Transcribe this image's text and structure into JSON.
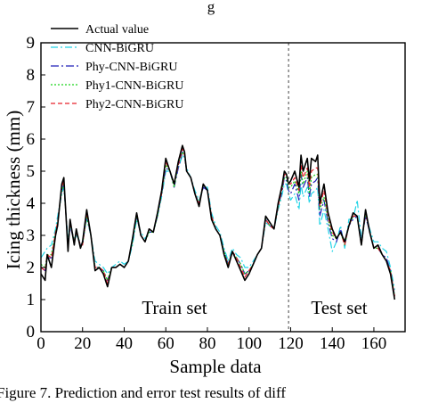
{
  "caption_top": "g",
  "caption_bottom": "Figure 7. Prediction and error test results of diff",
  "chart_data": {
    "type": "line",
    "xlabel": "Sample data",
    "ylabel": "Icing thickness (mm)",
    "xlim": [
      0,
      175
    ],
    "ylim": [
      0,
      9
    ],
    "xticks": [
      0,
      20,
      40,
      60,
      80,
      100,
      120,
      140,
      160
    ],
    "yticks": [
      0,
      1,
      2,
      3,
      4,
      5,
      6,
      7,
      8,
      9
    ],
    "split_x": 119,
    "annotations": [
      "Train set",
      "Test set"
    ],
    "legend_position": "top-left",
    "series": [
      {
        "name": "Actual value",
        "color": "#000000",
        "dash": "solid",
        "x": [
          0,
          2,
          3,
          5,
          7,
          8,
          10,
          11,
          13,
          14,
          16,
          17,
          19,
          20,
          22,
          24,
          26,
          28,
          30,
          32,
          34,
          36,
          38,
          40,
          42,
          44,
          46,
          48,
          50,
          52,
          54,
          56,
          58,
          60,
          62,
          64,
          66,
          68,
          69,
          70,
          72,
          74,
          76,
          78,
          80,
          82,
          84,
          86,
          88,
          90,
          92,
          94,
          96,
          98,
          100,
          102,
          104,
          106,
          108,
          110,
          112,
          114,
          116,
          117,
          118,
          119,
          120,
          122,
          124,
          125,
          126,
          128,
          129,
          130,
          132,
          133,
          134,
          136,
          138,
          140,
          142,
          144,
          146,
          148,
          150,
          152,
          154,
          156,
          158,
          160,
          162,
          164,
          166,
          168,
          170
        ],
        "y": [
          1.8,
          1.6,
          2.4,
          2.0,
          3.0,
          3.3,
          4.6,
          4.8,
          2.5,
          3.5,
          2.7,
          3.2,
          2.6,
          2.8,
          3.8,
          3.0,
          1.9,
          2.0,
          1.8,
          1.4,
          2.0,
          2.0,
          2.1,
          2.0,
          2.2,
          2.9,
          3.7,
          3.0,
          2.8,
          3.2,
          3.1,
          3.7,
          4.4,
          5.4,
          5.0,
          4.6,
          5.3,
          5.8,
          5.6,
          5.0,
          4.8,
          4.3,
          3.9,
          4.6,
          4.4,
          3.5,
          3.2,
          3.0,
          2.4,
          2.0,
          2.5,
          2.2,
          1.9,
          1.6,
          1.8,
          2.1,
          2.4,
          2.6,
          3.6,
          3.4,
          3.2,
          4.0,
          4.6,
          5.0,
          4.9,
          4.6,
          4.7,
          5.0,
          4.5,
          5.5,
          5.0,
          5.4,
          4.7,
          5.4,
          5.3,
          5.5,
          4.0,
          4.6,
          3.7,
          3.2,
          2.9,
          3.1,
          2.8,
          3.3,
          3.7,
          3.6,
          2.7,
          3.8,
          3.1,
          2.6,
          2.7,
          2.4,
          2.2,
          1.8,
          1.0
        ]
      },
      {
        "name": "CNN-BiGRU",
        "color": "#22d4e6",
        "dash": "8,3,2,3",
        "x": [
          0,
          2,
          3,
          5,
          7,
          8,
          10,
          11,
          13,
          14,
          16,
          17,
          19,
          20,
          22,
          24,
          26,
          28,
          30,
          32,
          34,
          36,
          38,
          40,
          42,
          44,
          46,
          48,
          50,
          52,
          54,
          56,
          58,
          60,
          62,
          64,
          66,
          68,
          69,
          70,
          72,
          74,
          76,
          78,
          80,
          82,
          84,
          86,
          88,
          90,
          92,
          94,
          96,
          98,
          100,
          102,
          104,
          106,
          108,
          110,
          112,
          114,
          116,
          117,
          118,
          119,
          120,
          122,
          124,
          125,
          126,
          128,
          129,
          130,
          132,
          133,
          134,
          136,
          138,
          140,
          142,
          144,
          146,
          148,
          150,
          152,
          154,
          156,
          158,
          160,
          162,
          164,
          166,
          168,
          170
        ],
        "y": [
          2.3,
          2.5,
          2.6,
          2.7,
          3.2,
          3.6,
          4.3,
          4.5,
          2.9,
          3.3,
          2.9,
          3.0,
          2.8,
          2.8,
          3.5,
          3.0,
          2.2,
          2.1,
          2.0,
          1.8,
          2.0,
          2.1,
          2.2,
          2.1,
          2.2,
          2.7,
          3.5,
          3.1,
          2.9,
          3.1,
          3.1,
          3.6,
          4.2,
          5.0,
          5.0,
          4.6,
          5.1,
          5.5,
          5.4,
          5.1,
          4.8,
          4.4,
          4.1,
          4.5,
          4.5,
          3.7,
          3.3,
          3.1,
          2.6,
          2.2,
          2.6,
          2.4,
          2.3,
          2.0,
          2.0,
          2.2,
          2.4,
          2.6,
          3.4,
          3.3,
          3.2,
          3.8,
          4.3,
          4.6,
          4.6,
          4.3,
          4.1,
          4.3,
          3.8,
          4.6,
          4.2,
          4.5,
          4.0,
          4.3,
          4.4,
          4.5,
          3.3,
          3.8,
          3.2,
          2.5,
          2.8,
          3.3,
          2.6,
          3.5,
          3.5,
          4.1,
          2.9,
          3.6,
          3.2,
          2.8,
          2.8,
          2.6,
          2.5,
          2.0,
          1.3
        ]
      },
      {
        "name": "Phy-CNN-BiGRU",
        "color": "#1f1fb8",
        "dash": "9,3,2,3",
        "x": [
          0,
          2,
          3,
          5,
          7,
          8,
          10,
          11,
          13,
          14,
          16,
          17,
          19,
          20,
          22,
          24,
          26,
          28,
          30,
          32,
          34,
          36,
          38,
          40,
          42,
          44,
          46,
          48,
          50,
          52,
          54,
          56,
          58,
          60,
          62,
          64,
          66,
          68,
          69,
          70,
          72,
          74,
          76,
          78,
          80,
          82,
          84,
          86,
          88,
          90,
          92,
          94,
          96,
          98,
          100,
          102,
          104,
          106,
          108,
          110,
          112,
          114,
          116,
          117,
          118,
          119,
          120,
          122,
          124,
          125,
          126,
          128,
          129,
          130,
          132,
          133,
          134,
          136,
          138,
          140,
          142,
          144,
          146,
          148,
          150,
          152,
          154,
          156,
          158,
          160,
          162,
          164,
          166,
          168,
          170
        ],
        "y": [
          2.0,
          1.9,
          2.3,
          2.3,
          3.0,
          3.4,
          4.4,
          4.6,
          2.7,
          3.3,
          2.8,
          3.1,
          2.7,
          2.7,
          3.6,
          3.0,
          2.0,
          2.0,
          1.9,
          1.6,
          2.0,
          2.0,
          2.1,
          2.0,
          2.2,
          2.8,
          3.6,
          3.0,
          2.8,
          3.1,
          3.1,
          3.6,
          4.3,
          5.1,
          5.0,
          4.5,
          5.1,
          5.6,
          5.5,
          5.0,
          4.8,
          4.3,
          4.0,
          4.5,
          4.4,
          3.6,
          3.2,
          3.0,
          2.5,
          2.1,
          2.5,
          2.3,
          2.1,
          1.8,
          1.9,
          2.1,
          2.4,
          2.6,
          3.5,
          3.3,
          3.2,
          3.9,
          4.4,
          4.8,
          4.7,
          4.4,
          4.3,
          4.6,
          4.1,
          4.9,
          4.5,
          4.8,
          4.2,
          4.6,
          4.7,
          4.8,
          3.6,
          4.1,
          3.4,
          2.9,
          2.8,
          3.2,
          2.7,
          3.3,
          3.5,
          3.6,
          2.8,
          3.6,
          3.1,
          2.6,
          2.6,
          2.4,
          2.3,
          1.9,
          1.1
        ]
      },
      {
        "name": "Phy1-CNN-BiGRU",
        "color": "#1bd41b",
        "dash": "2,2",
        "x": [
          0,
          2,
          3,
          5,
          7,
          8,
          10,
          11,
          13,
          14,
          16,
          17,
          19,
          20,
          22,
          24,
          26,
          28,
          30,
          32,
          34,
          36,
          38,
          40,
          42,
          44,
          46,
          48,
          50,
          52,
          54,
          56,
          58,
          60,
          62,
          64,
          66,
          68,
          69,
          70,
          72,
          74,
          76,
          78,
          80,
          82,
          84,
          86,
          88,
          90,
          92,
          94,
          96,
          98,
          100,
          102,
          104,
          106,
          108,
          110,
          112,
          114,
          116,
          117,
          118,
          119,
          120,
          122,
          124,
          125,
          126,
          128,
          129,
          130,
          132,
          133,
          134,
          136,
          138,
          140,
          142,
          144,
          146,
          148,
          150,
          152,
          154,
          156,
          158,
          160,
          162,
          164,
          166,
          168,
          170
        ],
        "y": [
          2.1,
          2.0,
          2.4,
          2.4,
          3.1,
          3.4,
          4.4,
          4.6,
          2.7,
          3.4,
          2.8,
          3.1,
          2.7,
          2.7,
          3.6,
          3.0,
          2.0,
          2.0,
          1.9,
          1.6,
          2.0,
          2.0,
          2.1,
          2.0,
          2.2,
          2.8,
          3.6,
          3.0,
          2.8,
          3.1,
          3.1,
          3.6,
          4.3,
          5.2,
          5.0,
          4.5,
          5.2,
          5.6,
          5.5,
          5.0,
          4.8,
          4.3,
          4.0,
          4.6,
          4.4,
          3.6,
          3.2,
          3.0,
          2.5,
          2.1,
          2.5,
          2.3,
          2.1,
          1.8,
          1.9,
          2.1,
          2.4,
          2.6,
          3.5,
          3.3,
          3.2,
          3.9,
          4.5,
          4.8,
          4.8,
          4.5,
          4.5,
          4.7,
          4.3,
          5.0,
          4.6,
          5.0,
          4.3,
          4.8,
          4.9,
          4.9,
          3.8,
          4.2,
          3.5,
          3.0,
          2.9,
          3.1,
          2.7,
          3.3,
          3.6,
          3.6,
          2.7,
          3.7,
          3.1,
          2.6,
          2.6,
          2.4,
          2.2,
          1.9,
          1.1
        ]
      },
      {
        "name": "Phy2-CNN-BiGRU",
        "color": "#e8202a",
        "dash": "5,3",
        "x": [
          0,
          2,
          3,
          5,
          7,
          8,
          10,
          11,
          13,
          14,
          16,
          17,
          19,
          20,
          22,
          24,
          26,
          28,
          30,
          32,
          34,
          36,
          38,
          40,
          42,
          44,
          46,
          48,
          50,
          52,
          54,
          56,
          58,
          60,
          62,
          64,
          66,
          68,
          69,
          70,
          72,
          74,
          76,
          78,
          80,
          82,
          84,
          86,
          88,
          90,
          92,
          94,
          96,
          98,
          100,
          102,
          104,
          106,
          108,
          110,
          112,
          114,
          116,
          117,
          118,
          119,
          120,
          122,
          124,
          125,
          126,
          128,
          129,
          130,
          132,
          133,
          134,
          136,
          138,
          140,
          142,
          144,
          146,
          148,
          150,
          152,
          154,
          156,
          158,
          160,
          162,
          164,
          166,
          168,
          170
        ],
        "y": [
          2.0,
          1.9,
          2.4,
          2.3,
          3.1,
          3.4,
          4.5,
          4.7,
          2.6,
          3.4,
          2.8,
          3.1,
          2.7,
          2.7,
          3.7,
          3.0,
          2.0,
          2.0,
          1.9,
          1.5,
          2.0,
          2.0,
          2.1,
          2.0,
          2.2,
          2.9,
          3.7,
          3.0,
          2.8,
          3.2,
          3.1,
          3.7,
          4.3,
          5.3,
          5.0,
          4.6,
          5.2,
          5.7,
          5.5,
          5.0,
          4.8,
          4.3,
          4.0,
          4.6,
          4.4,
          3.6,
          3.2,
          3.0,
          2.4,
          2.1,
          2.5,
          2.3,
          2.0,
          1.7,
          1.9,
          2.1,
          2.4,
          2.6,
          3.5,
          3.3,
          3.2,
          3.9,
          4.5,
          4.9,
          4.9,
          4.6,
          4.6,
          4.8,
          4.4,
          5.2,
          4.8,
          5.1,
          4.5,
          5.0,
          5.1,
          5.1,
          3.9,
          4.4,
          3.6,
          3.1,
          2.9,
          3.1,
          2.7,
          3.3,
          3.6,
          3.6,
          2.7,
          3.7,
          3.1,
          2.6,
          2.6,
          2.4,
          2.2,
          1.9,
          1.1
        ]
      }
    ]
  }
}
